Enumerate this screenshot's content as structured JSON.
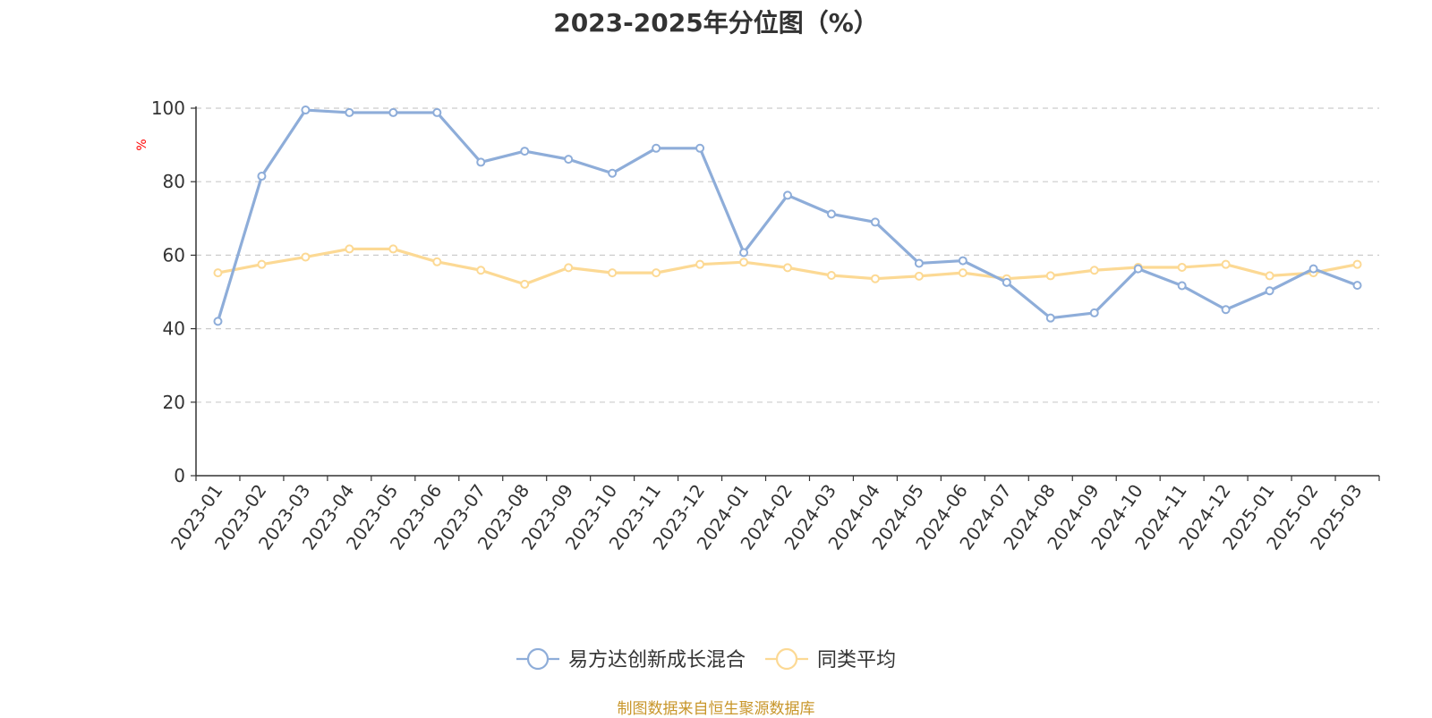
{
  "chart_data": {
    "type": "line",
    "title": "2023-2025年分位图（%）",
    "ylabel": "%",
    "xlabel": "",
    "ylim": [
      0,
      100
    ],
    "yticks": [
      0,
      20,
      40,
      60,
      80,
      100
    ],
    "grid": true,
    "legend_position": "bottom",
    "categories": [
      "2023-01",
      "2023-02",
      "2023-03",
      "2023-04",
      "2023-05",
      "2023-06",
      "2023-07",
      "2023-08",
      "2023-09",
      "2023-10",
      "2023-11",
      "2023-12",
      "2024-01",
      "2024-02",
      "2024-03",
      "2024-04",
      "2024-05",
      "2024-06",
      "2024-07",
      "2024-08",
      "2024-09",
      "2024-10",
      "2024-11",
      "2024-12",
      "2025-01",
      "2025-02",
      "2025-03"
    ],
    "series": [
      {
        "name": "易方达创新成长混合",
        "color": "#8eadd9",
        "values": [
          42,
          81.5,
          99.5,
          98.8,
          98.8,
          98.8,
          85.3,
          88.3,
          86.1,
          82.3,
          89.1,
          89.1,
          60.7,
          76.3,
          71.2,
          69,
          57.8,
          58.5,
          52.6,
          42.9,
          44.3,
          56.3,
          51.7,
          45.2,
          50.3,
          56.3,
          51.8
        ]
      },
      {
        "name": "同类平均",
        "color": "#fcd994",
        "values": [
          55.2,
          57.5,
          59.5,
          61.7,
          61.7,
          58.2,
          55.9,
          52.1,
          56.6,
          55.2,
          55.2,
          57.5,
          58.1,
          56.6,
          54.5,
          53.6,
          54.3,
          55.2,
          53.6,
          54.4,
          55.9,
          56.7,
          56.7,
          57.5,
          54.4,
          55.2,
          57.5
        ]
      }
    ]
  },
  "source_note": "制图数据来自恒生聚源数据库",
  "colors": {
    "axis": "#333333",
    "grid": "#cccccc",
    "unit_label": "#ff0000",
    "source_note": "#c8962a"
  }
}
